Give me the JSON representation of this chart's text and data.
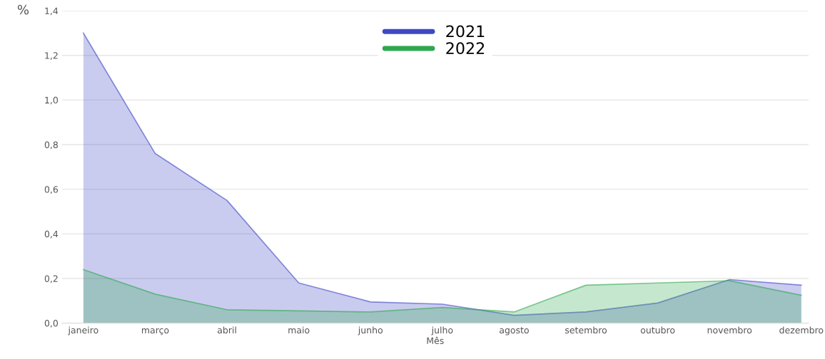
{
  "chart_data": {
    "type": "area",
    "ylabel": "%",
    "xlabel": "Mês",
    "categories": [
      "janeiro",
      "março",
      "abril",
      "maio",
      "junho",
      "julho",
      "agosto",
      "setembro",
      "outubro",
      "novembro",
      "dezembro"
    ],
    "series": [
      {
        "name": "2021",
        "color": "#3f48c4",
        "values": [
          1.3,
          0.76,
          0.55,
          0.18,
          0.095,
          0.085,
          0.035,
          0.05,
          0.09,
          0.195,
          0.17
        ]
      },
      {
        "name": "2022",
        "color": "#2ea84e",
        "values": [
          0.24,
          0.13,
          0.06,
          0.055,
          0.05,
          0.07,
          0.05,
          0.17,
          0.18,
          0.19,
          0.125
        ]
      }
    ],
    "ylim": [
      0,
      1.4
    ],
    "yticks": [
      {
        "value": 0,
        "label": "0,0"
      },
      {
        "value": 0.2,
        "label": "0,2"
      },
      {
        "value": 0.4,
        "label": "0,4"
      },
      {
        "value": 0.6,
        "label": "0,6"
      },
      {
        "value": 0.8,
        "label": "0,8"
      },
      {
        "value": 1.0,
        "label": "1,0"
      },
      {
        "value": 1.2,
        "label": "1,2"
      },
      {
        "value": 1.4,
        "label": "1,4"
      }
    ],
    "grid": "y",
    "legend": "top"
  }
}
